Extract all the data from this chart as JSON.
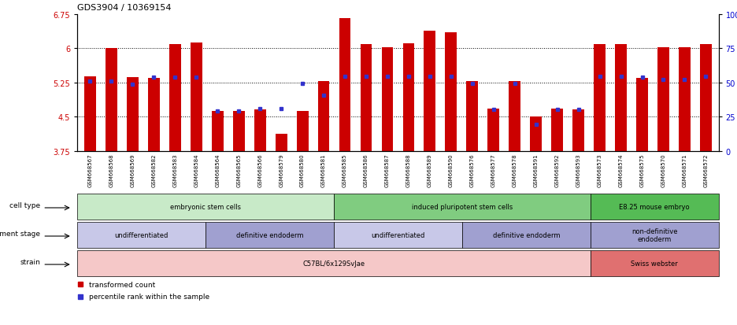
{
  "title": "GDS3904 / 10369154",
  "samples": [
    "GSM668567",
    "GSM668568",
    "GSM668569",
    "GSM668582",
    "GSM668583",
    "GSM668584",
    "GSM668564",
    "GSM668565",
    "GSM668566",
    "GSM668579",
    "GSM668580",
    "GSM668581",
    "GSM668585",
    "GSM668586",
    "GSM668587",
    "GSM668588",
    "GSM668589",
    "GSM668590",
    "GSM668576",
    "GSM668577",
    "GSM668578",
    "GSM668591",
    "GSM668592",
    "GSM668593",
    "GSM668573",
    "GSM668574",
    "GSM668575",
    "GSM668570",
    "GSM668571",
    "GSM668572"
  ],
  "bar_values": [
    5.38,
    6.0,
    5.37,
    5.35,
    6.08,
    6.12,
    4.62,
    4.62,
    4.65,
    4.12,
    4.62,
    5.27,
    6.65,
    6.08,
    6.02,
    6.1,
    6.38,
    6.35,
    5.28,
    4.68,
    5.27,
    4.5,
    4.68,
    4.65,
    6.08,
    6.08,
    5.35,
    6.02,
    6.02,
    6.08
  ],
  "percentile_values": [
    5.28,
    5.27,
    5.2,
    5.37,
    5.37,
    5.37,
    4.62,
    4.62,
    4.68,
    4.68,
    5.22,
    4.97,
    5.38,
    5.38,
    5.38,
    5.38,
    5.38,
    5.38,
    5.22,
    4.65,
    5.22,
    4.32,
    4.65,
    4.65,
    5.38,
    5.38,
    5.37,
    5.32,
    5.32,
    5.38
  ],
  "ylim_left": [
    3.75,
    6.75
  ],
  "ylim_right": [
    0,
    100
  ],
  "yticks_left": [
    3.75,
    4.5,
    5.25,
    6.0,
    6.75
  ],
  "ytick_labels_left": [
    "3.75",
    "4.5",
    "5.25",
    "6",
    "6.75"
  ],
  "yticks_right": [
    0,
    25,
    50,
    75,
    100
  ],
  "ytick_labels_right": [
    "0",
    "25",
    "50",
    "75",
    "100%"
  ],
  "bar_color": "#cc0000",
  "percentile_color": "#3333cc",
  "cell_type_regions": [
    {
      "label": "embryonic stem cells",
      "start": 0,
      "end": 12,
      "color": "#c8eac8"
    },
    {
      "label": "induced pluripotent stem cells",
      "start": 12,
      "end": 24,
      "color": "#80cc80"
    },
    {
      "label": "E8.25 mouse embryo",
      "start": 24,
      "end": 30,
      "color": "#55bb55"
    }
  ],
  "dev_stage_regions": [
    {
      "label": "undifferentiated",
      "start": 0,
      "end": 6,
      "color": "#c8c8e8"
    },
    {
      "label": "definitive endoderm",
      "start": 6,
      "end": 12,
      "color": "#a0a0d0"
    },
    {
      "label": "undifferentiated",
      "start": 12,
      "end": 18,
      "color": "#c8c8e8"
    },
    {
      "label": "definitive endoderm",
      "start": 18,
      "end": 24,
      "color": "#a0a0d0"
    },
    {
      "label": "non-definitive\nendoderm",
      "start": 24,
      "end": 30,
      "color": "#a0a0d0"
    }
  ],
  "strain_regions": [
    {
      "label": "C57BL/6x129SvJae",
      "start": 0,
      "end": 24,
      "color": "#f5c8c8"
    },
    {
      "label": "Swiss webster",
      "start": 24,
      "end": 30,
      "color": "#e07070"
    }
  ],
  "row_labels": [
    "cell type",
    "development stage",
    "strain"
  ],
  "legend_items": [
    {
      "color": "#cc0000",
      "label": "transformed count"
    },
    {
      "color": "#3333cc",
      "label": "percentile rank within the sample"
    }
  ],
  "xtick_bg_color": "#d8d8d8",
  "left_label_color": "#555555"
}
